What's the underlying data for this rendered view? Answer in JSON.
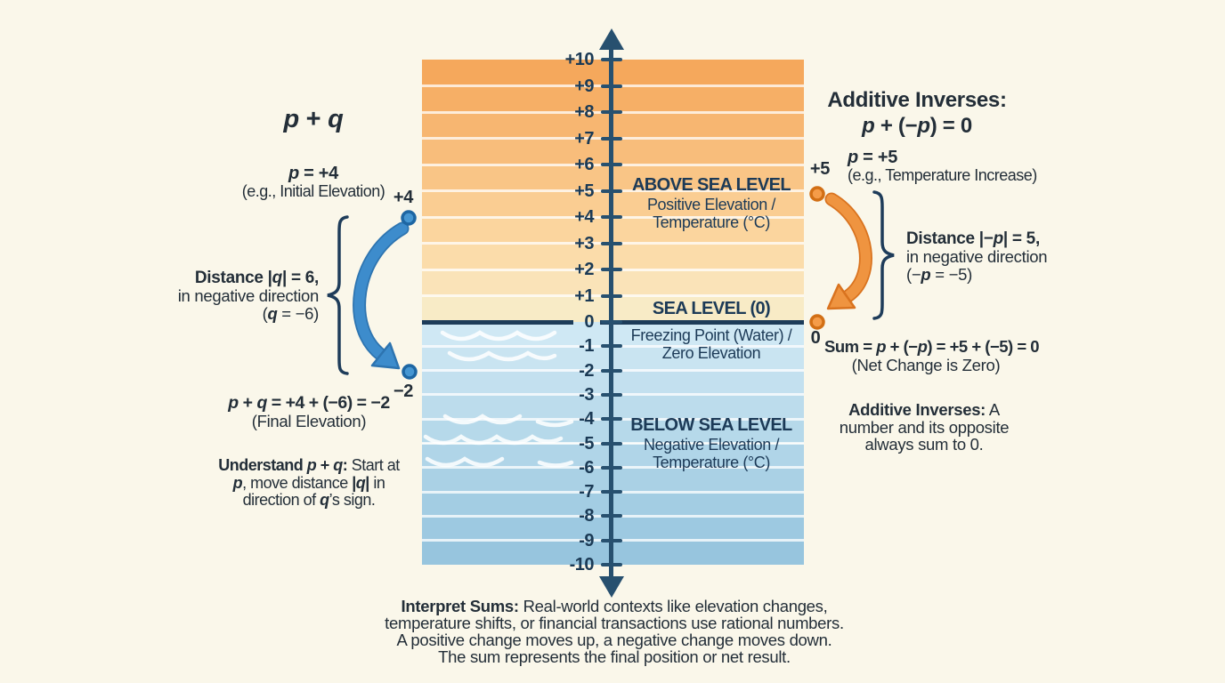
{
  "colors": {
    "background": "#faf7ea",
    "axis": "#27506f",
    "navy_text": "#1c3a57",
    "blue_arrow": "#3d8ccc",
    "orange_arrow": "#ef9440",
    "sea_line": "#1d3c59"
  },
  "numberline": {
    "ticks": [
      "+10",
      "+9",
      "+8",
      "+7",
      "+6",
      "+5",
      "+4",
      "+3",
      "+2",
      "+1",
      "0",
      "-1",
      "-2",
      "-3",
      "-4",
      "-5",
      "-6",
      "-7",
      "-8",
      "-9",
      "-10"
    ],
    "stripes_above": [
      "#f5a85c",
      "#f6af66",
      "#f7b671",
      "#f8bd7b",
      "#f9c586",
      "#facd92",
      "#fbd59e",
      "#fbdcaa",
      "#fae3b8",
      "#f8ebc6"
    ],
    "stripes_below": [
      "#cfe8f4",
      "#c9e4f1",
      "#c3e0ef",
      "#bcdcec",
      "#b6d9ea",
      "#b0d5e8",
      "#aad1e5",
      "#a3cde3",
      "#9dc9e1",
      "#97c5de"
    ]
  },
  "band": {
    "above_title": "ABOVE SEA LEVEL",
    "above_sub1": "Positive Elevation /",
    "above_sub2": "Temperature (°C)",
    "sea_title": "SEA LEVEL (0)",
    "sea_sub1": "Freezing Point (Water) /",
    "sea_sub2": "Zero Elevation",
    "below_title": "BELOW SEA LEVEL",
    "below_sub1": "Negative Elevation /",
    "below_sub2": "Temperature (°C)"
  },
  "left": {
    "heading": [
      {
        "t": "p",
        "b": 1,
        "i": 1
      },
      {
        "t": " + ",
        "b": 1
      },
      {
        "t": "q",
        "b": 1,
        "i": 1
      }
    ],
    "p_line": [
      {
        "t": "p",
        "b": 1,
        "i": 1
      },
      {
        "t": " = +4",
        "b": 1
      }
    ],
    "p_note": "(e.g., Initial Elevation)",
    "start_label": "+4",
    "distance1": [
      {
        "t": "Distance |",
        "b": 1
      },
      {
        "t": "q",
        "b": 1,
        "i": 1
      },
      {
        "t": "| = 6,",
        "b": 1
      }
    ],
    "distance2": "in negative direction",
    "distance3": [
      {
        "t": "("
      },
      {
        "t": "q",
        "b": 1,
        "i": 1
      },
      {
        "t": " = −6)"
      }
    ],
    "end_label": "−2",
    "result": [
      {
        "t": "p",
        "b": 1,
        "i": 1
      },
      {
        "t": " + ",
        "b": 1
      },
      {
        "t": "q",
        "b": 1,
        "i": 1
      },
      {
        "t": " = +4 + (−6) = −2",
        "b": 1
      }
    ],
    "result_note": "(Final Elevation)",
    "understand1": [
      {
        "t": "Understand ",
        "b": 1
      },
      {
        "t": "p",
        "b": 1,
        "i": 1
      },
      {
        "t": " + ",
        "b": 1
      },
      {
        "t": "q",
        "b": 1,
        "i": 1
      },
      {
        "t": ":",
        "b": 1
      },
      {
        "t": " Start at"
      }
    ],
    "understand2": [
      {
        "t": "p",
        "b": 1,
        "i": 1
      },
      {
        "t": ", move distance "
      },
      {
        "t": "|",
        "b": 1
      },
      {
        "t": "q",
        "b": 1,
        "i": 1
      },
      {
        "t": "|",
        "b": 1
      },
      {
        "t": " in"
      }
    ],
    "understand3": [
      {
        "t": "direction of "
      },
      {
        "t": "q",
        "b": 1,
        "i": 1
      },
      {
        "t": "’s sign."
      }
    ]
  },
  "right": {
    "heading1": "Additive Inverses:",
    "heading2": [
      {
        "t": "p",
        "b": 1,
        "i": 1
      },
      {
        "t": " + (−",
        "b": 1
      },
      {
        "t": "p",
        "b": 1,
        "i": 1
      },
      {
        "t": ") = 0",
        "b": 1
      }
    ],
    "p_line": [
      {
        "t": "p",
        "b": 1,
        "i": 1
      },
      {
        "t": " = +5",
        "b": 1
      }
    ],
    "p_note": "(e.g., Temperature Increase)",
    "start_label": "+5",
    "distance1": [
      {
        "t": "Distance |−",
        "b": 1
      },
      {
        "t": "p",
        "b": 1,
        "i": 1
      },
      {
        "t": "| = 5,",
        "b": 1
      }
    ],
    "distance2": "in negative direction",
    "distance3": [
      {
        "t": "(−"
      },
      {
        "t": "p",
        "b": 1,
        "i": 1
      },
      {
        "t": " = −5)"
      }
    ],
    "end_label": "0",
    "sum": [
      {
        "t": "Sum = ",
        "b": 1
      },
      {
        "t": "p",
        "b": 1,
        "i": 1
      },
      {
        "t": " + (−",
        "b": 1
      },
      {
        "t": "p",
        "b": 1,
        "i": 1
      },
      {
        "t": ") = +5 + (−5) = 0",
        "b": 1
      }
    ],
    "sum_note": "(Net Change is Zero)",
    "note1": [
      {
        "t": "Additive Inverses:",
        "b": 1
      },
      {
        "t": " A"
      }
    ],
    "note2": "number and its opposite",
    "note3": "always sum to 0."
  },
  "bottom": {
    "line1": [
      {
        "t": "Interpret Sums:",
        "b": 1
      },
      {
        "t": " Real-world contexts like elevation changes,"
      }
    ],
    "line2": "temperature shifts, or financial transactions use rational numbers.",
    "line3": "A positive change moves up, a negative change moves down.",
    "line4": "The sum represents the final position or net result."
  }
}
